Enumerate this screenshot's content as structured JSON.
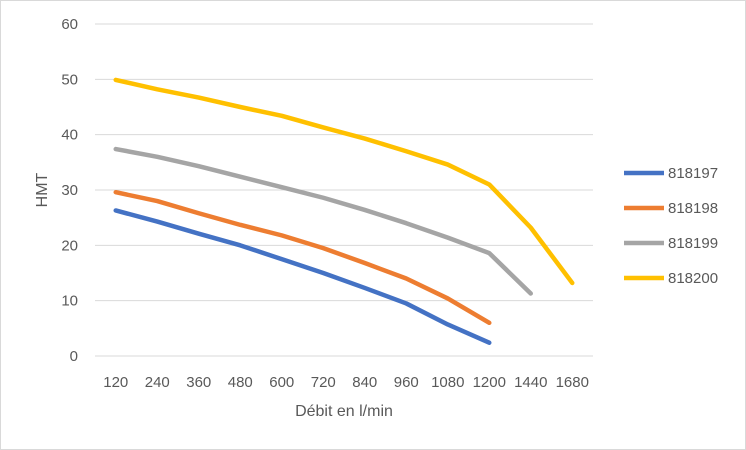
{
  "chart_data": {
    "type": "line",
    "title": "",
    "xlabel": "Débit en l/min",
    "ylabel": "HMT",
    "categories": [
      "120",
      "240",
      "360",
      "480",
      "600",
      "720",
      "840",
      "960",
      "1080",
      "1200",
      "1440",
      "1680"
    ],
    "ylim": [
      0,
      60
    ],
    "yticks": [
      0,
      10,
      20,
      30,
      40,
      50,
      60
    ],
    "grid": true,
    "legend_position": "right",
    "series": [
      {
        "name": "818197",
        "color": "#4472C4",
        "values": [
          26.3,
          24.3,
          22.1,
          20.0,
          17.5,
          15.0,
          12.3,
          9.5,
          5.7,
          2.4,
          null,
          null
        ]
      },
      {
        "name": "818198",
        "color": "#ED7D31",
        "values": [
          29.6,
          28.0,
          25.8,
          23.7,
          21.8,
          19.5,
          16.8,
          14.0,
          10.4,
          6.0,
          null,
          null
        ]
      },
      {
        "name": "818199",
        "color": "#A5A5A5",
        "values": [
          37.4,
          36.0,
          34.3,
          32.4,
          30.5,
          28.6,
          26.4,
          24.0,
          21.4,
          18.6,
          11.3,
          null
        ]
      },
      {
        "name": "818200",
        "color": "#FFC000",
        "values": [
          49.9,
          48.2,
          46.7,
          45.0,
          43.4,
          41.3,
          39.3,
          37.0,
          34.6,
          31.0,
          23.2,
          13.2
        ]
      }
    ]
  }
}
